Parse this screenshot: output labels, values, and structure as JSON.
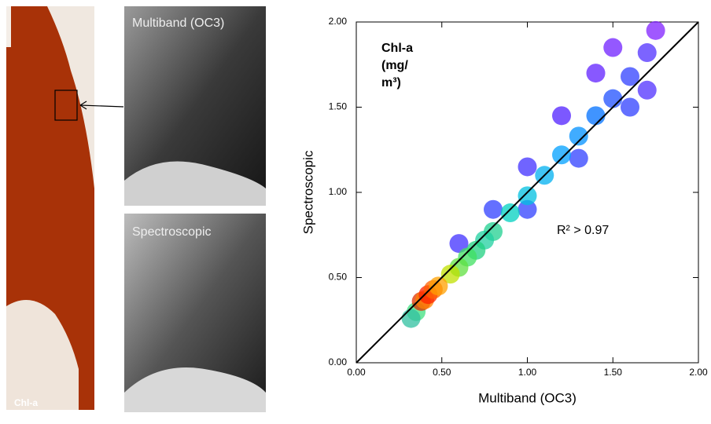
{
  "images": {
    "left_label": "Chl-a",
    "top_label": "Multiband (OC3)",
    "bottom_label": "Spectroscopic"
  },
  "chart_data": {
    "type": "scatter",
    "xlabel": "Multiband (OC3)",
    "ylabel": "Spectroscopic",
    "annotation": [
      "Chl-a",
      "(mg/",
      "m³)"
    ],
    "r2_label": "R² > 0.97",
    "xlim": [
      0,
      2
    ],
    "ylim": [
      0,
      2
    ],
    "xticks": [
      {
        "value": 0,
        "label": "0.00"
      },
      {
        "value": 0.5,
        "label": "0.50"
      },
      {
        "value": 1,
        "label": "1.00"
      },
      {
        "value": 1.5,
        "label": "1.50"
      },
      {
        "value": 2,
        "label": "2.00"
      }
    ],
    "yticks": [
      {
        "value": 0,
        "label": "0.00"
      },
      {
        "value": 0.5,
        "label": "0.50"
      },
      {
        "value": 1,
        "label": "1.00"
      },
      {
        "value": 1.5,
        "label": "1.50"
      },
      {
        "value": 2,
        "label": "2.00"
      }
    ],
    "reference_line": true,
    "x": [
      0.8,
      1.0,
      1.2,
      1.4,
      1.5,
      1.0,
      1.3,
      1.6,
      1.7,
      0.6,
      1.75,
      1.7,
      1.6,
      1.5,
      1.4,
      1.3,
      1.2,
      1.1,
      1.0,
      0.9,
      0.8,
      0.75,
      0.7,
      0.65,
      0.6,
      0.55,
      0.35,
      0.32,
      0.38,
      0.4,
      0.42,
      0.45,
      0.48
    ],
    "y": [
      0.9,
      1.15,
      1.45,
      1.7,
      1.85,
      0.9,
      1.2,
      1.5,
      1.6,
      0.7,
      1.95,
      1.82,
      1.68,
      1.55,
      1.45,
      1.33,
      1.22,
      1.1,
      0.98,
      0.88,
      0.77,
      0.72,
      0.66,
      0.62,
      0.56,
      0.52,
      0.3,
      0.26,
      0.36,
      0.37,
      0.4,
      0.43,
      0.45
    ],
    "point_colors": [
      "#3040ff",
      "#4030ff",
      "#5020ff",
      "#6020ff",
      "#7020ff",
      "#3040ff",
      "#3040ff",
      "#3040ff",
      "#5030ff",
      "#4030ff",
      "#8020ff",
      "#5030ff",
      "#3040ff",
      "#2050ff",
      "#0070ff",
      "#0090ff",
      "#00a0ff",
      "#00b0f0",
      "#00c0e0",
      "#00d0c0",
      "#20d090",
      "#20d0a0",
      "#20d080",
      "#40e060",
      "#60e040",
      "#c0e000",
      "#40e080",
      "#30c0a0",
      "#e03000",
      "#ff8000",
      "#ff2000",
      "#ff6000",
      "#ffa000"
    ]
  }
}
